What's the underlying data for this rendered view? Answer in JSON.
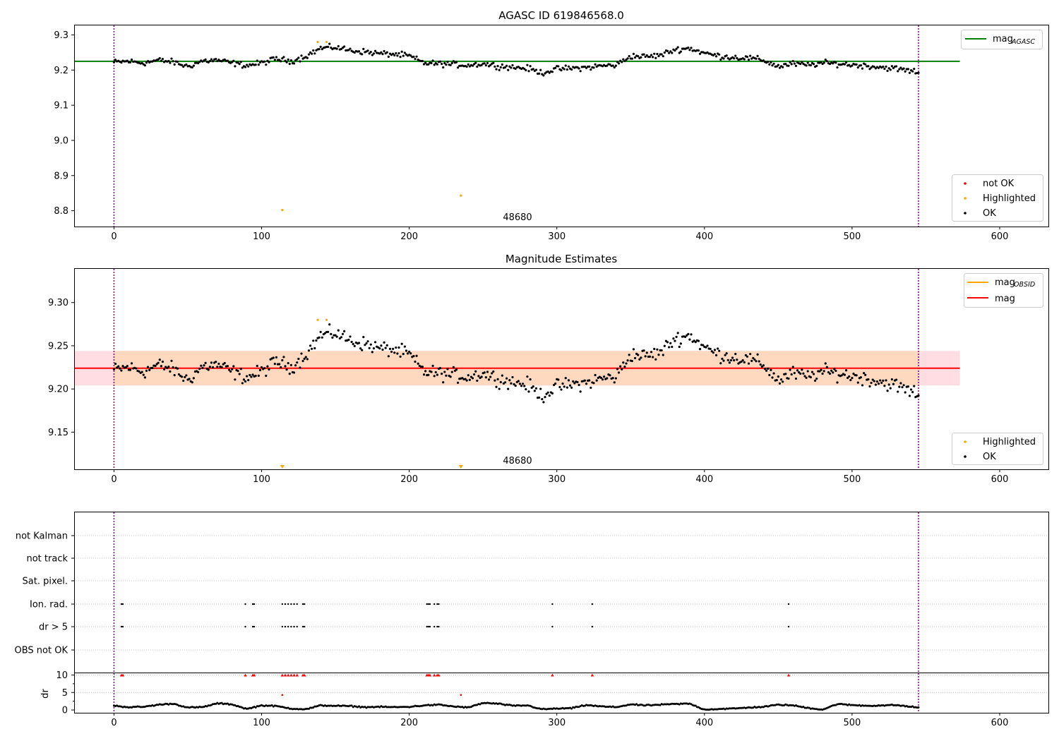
{
  "figure": {
    "panel1_title": "AGASC ID 619846568.0",
    "panel2_title": "Magnitude Estimates",
    "obsid_label": "48680"
  },
  "legends": {
    "mag_agasc_main": "mag",
    "mag_agasc_sub": "AGASC",
    "mag_obsid_main": "mag",
    "mag_obsid_sub": "OBSID",
    "mag": "mag",
    "not_ok": "not OK",
    "highlighted": "Highlighted",
    "ok": "OK"
  },
  "colors": {
    "ok": "#000000",
    "highlighted": "#FFA500",
    "not_ok": "#FF0000",
    "agasc_line": "#008000",
    "mean_line": "#FF0000",
    "band_outer": "#FFDDE2",
    "band_inner": "#FFD8C0",
    "obs_boundary": "#800080",
    "grid": "#B0B0B0"
  },
  "chart_data": [
    {
      "type": "scatter",
      "title": "AGASC ID 619846568.0",
      "xlim": [
        -27,
        633
      ],
      "ylim": [
        8.755,
        9.327
      ],
      "xticks": [
        0,
        100,
        200,
        300,
        400,
        500,
        600
      ],
      "yticks": [
        8.8,
        8.9,
        9.0,
        9.1,
        9.2,
        9.3
      ],
      "legend": "top-right (mag AGASC) and bottom-right (not OK, Highlighted, OK)",
      "mag_agasc": 9.225,
      "obs_boundaries": [
        0,
        545
      ],
      "obsid_annotation": {
        "x": 272,
        "label": "48680"
      },
      "series": [
        {
          "name": "OK",
          "description": "545 per-sample magnitude estimates, smooth variation between 9.18 and 9.27",
          "x_range": [
            0,
            545
          ],
          "trend": [
            [
              0,
              9.222
            ],
            [
              10,
              9.225
            ],
            [
              20,
              9.22
            ],
            [
              30,
              9.228
            ],
            [
              40,
              9.223
            ],
            [
              50,
              9.21
            ],
            [
              60,
              9.226
            ],
            [
              70,
              9.228
            ],
            [
              80,
              9.22
            ],
            [
              90,
              9.213
            ],
            [
              100,
              9.22
            ],
            [
              110,
              9.232
            ],
            [
              120,
              9.225
            ],
            [
              130,
              9.24
            ],
            [
              140,
              9.262
            ],
            [
              150,
              9.265
            ],
            [
              160,
              9.256
            ],
            [
              170,
              9.252
            ],
            [
              180,
              9.247
            ],
            [
              190,
              9.245
            ],
            [
              200,
              9.24
            ],
            [
              210,
              9.22
            ],
            [
              220,
              9.218
            ],
            [
              230,
              9.216
            ],
            [
              240,
              9.214
            ],
            [
              250,
              9.218
            ],
            [
              260,
              9.212
            ],
            [
              270,
              9.208
            ],
            [
              280,
              9.205
            ],
            [
              290,
              9.192
            ],
            [
              300,
              9.203
            ],
            [
              310,
              9.205
            ],
            [
              320,
              9.207
            ],
            [
              330,
              9.212
            ],
            [
              340,
              9.214
            ],
            [
              350,
              9.24
            ],
            [
              360,
              9.238
            ],
            [
              370,
              9.242
            ],
            [
              380,
              9.258
            ],
            [
              390,
              9.262
            ],
            [
              400,
              9.248
            ],
            [
              410,
              9.24
            ],
            [
              420,
              9.236
            ],
            [
              430,
              9.234
            ],
            [
              440,
              9.228
            ],
            [
              450,
              9.21
            ],
            [
              460,
              9.218
            ],
            [
              470,
              9.214
            ],
            [
              480,
              9.22
            ],
            [
              490,
              9.218
            ],
            [
              500,
              9.215
            ],
            [
              510,
              9.212
            ],
            [
              520,
              9.208
            ],
            [
              530,
              9.204
            ],
            [
              540,
              9.197
            ],
            [
              545,
              9.195
            ]
          ]
        },
        {
          "name": "Highlighted",
          "points": [
            [
              114,
              8.802
            ],
            [
              138,
              9.28
            ],
            [
              144,
              9.28
            ],
            [
              235,
              8.843
            ]
          ]
        },
        {
          "name": "not OK",
          "points": []
        }
      ]
    },
    {
      "type": "scatter",
      "title": "Magnitude Estimates",
      "xlim": [
        -27,
        633
      ],
      "ylim": [
        9.107,
        9.339
      ],
      "xticks": [
        0,
        100,
        200,
        300,
        400,
        500,
        600
      ],
      "yticks": [
        9.15,
        9.2,
        9.25,
        9.3
      ],
      "legend": "top-right (mag OBSID, mag) and bottom-right (Highlighted, OK)",
      "mag_mean": 9.224,
      "band_inner": [
        9.204,
        9.244
      ],
      "band_outer": [
        9.204,
        9.244
      ],
      "obs_boundaries": [
        0,
        545
      ],
      "obsid_annotation": {
        "x": 272,
        "label": "48680"
      },
      "highlighted_points": [
        [
          138,
          9.28
        ],
        [
          144,
          9.28
        ]
      ],
      "highlighted_below_axis": [
        114,
        235
      ]
    },
    {
      "type": "scatter",
      "title": "",
      "xlim": [
        -27,
        633
      ],
      "xticks": [
        0,
        100,
        200,
        300,
        400,
        500,
        600
      ],
      "flag_categories": [
        "not Kalman",
        "not track",
        "Sat. pixel.",
        "Ion. rad.",
        "dr > 5",
        "OBS not OK"
      ],
      "flag_points": {
        "Ion. rad.": [
          5,
          6,
          89,
          94,
          95,
          114,
          116,
          118,
          120,
          122,
          124,
          128,
          129,
          212,
          213,
          214,
          217,
          219,
          220,
          297,
          324,
          457
        ],
        "dr > 5": [
          5,
          6,
          89,
          94,
          95,
          114,
          116,
          118,
          120,
          122,
          124,
          128,
          129,
          212,
          213,
          214,
          217,
          219,
          220,
          297,
          324,
          457
        ]
      },
      "dr_ylabel": "dr",
      "dr_yticks": [
        0,
        5,
        10
      ],
      "dr_ylim": [
        -0.8,
        10.5
      ],
      "dr_clipped_at_10": [
        5,
        6,
        89,
        94,
        95,
        114,
        116,
        118,
        120,
        122,
        124,
        128,
        129,
        212,
        213,
        214,
        217,
        219,
        220,
        297,
        324,
        457
      ],
      "dr_red_points": [
        [
          114,
          4.3
        ],
        [
          235,
          4.3
        ]
      ],
      "dr_trend": [
        [
          0,
          1.2
        ],
        [
          10,
          0.8
        ],
        [
          20,
          0.9
        ],
        [
          30,
          1.5
        ],
        [
          40,
          1.8
        ],
        [
          50,
          0.7
        ],
        [
          60,
          0.8
        ],
        [
          70,
          1.9
        ],
        [
          80,
          1.6
        ],
        [
          90,
          0.3
        ],
        [
          100,
          1.3
        ],
        [
          110,
          1.1
        ],
        [
          120,
          0.4
        ],
        [
          130,
          0.2
        ],
        [
          140,
          1.3
        ],
        [
          150,
          1.2
        ],
        [
          160,
          1.1
        ],
        [
          170,
          0.8
        ],
        [
          180,
          0.9
        ],
        [
          190,
          0.8
        ],
        [
          200,
          0.9
        ],
        [
          210,
          1.3
        ],
        [
          220,
          1.5
        ],
        [
          230,
          1.0
        ],
        [
          240,
          0.7
        ],
        [
          250,
          2.0
        ],
        [
          260,
          1.8
        ],
        [
          270,
          1.2
        ],
        [
          280,
          1.3
        ],
        [
          290,
          0.2
        ],
        [
          300,
          0.4
        ],
        [
          310,
          0.5
        ],
        [
          320,
          1.4
        ],
        [
          330,
          1.0
        ],
        [
          340,
          0.8
        ],
        [
          350,
          1.6
        ],
        [
          360,
          1.3
        ],
        [
          370,
          1.5
        ],
        [
          380,
          1.7
        ],
        [
          390,
          1.8
        ],
        [
          400,
          0.1
        ],
        [
          410,
          0.3
        ],
        [
          420,
          0.4
        ],
        [
          430,
          0.7
        ],
        [
          440,
          0.9
        ],
        [
          450,
          1.5
        ],
        [
          460,
          1.3
        ],
        [
          470,
          0.6
        ],
        [
          480,
          0.1
        ],
        [
          490,
          1.7
        ],
        [
          500,
          1.4
        ],
        [
          510,
          1.2
        ],
        [
          520,
          1.3
        ],
        [
          530,
          1.4
        ],
        [
          540,
          0.9
        ],
        [
          545,
          0.7
        ]
      ]
    }
  ]
}
